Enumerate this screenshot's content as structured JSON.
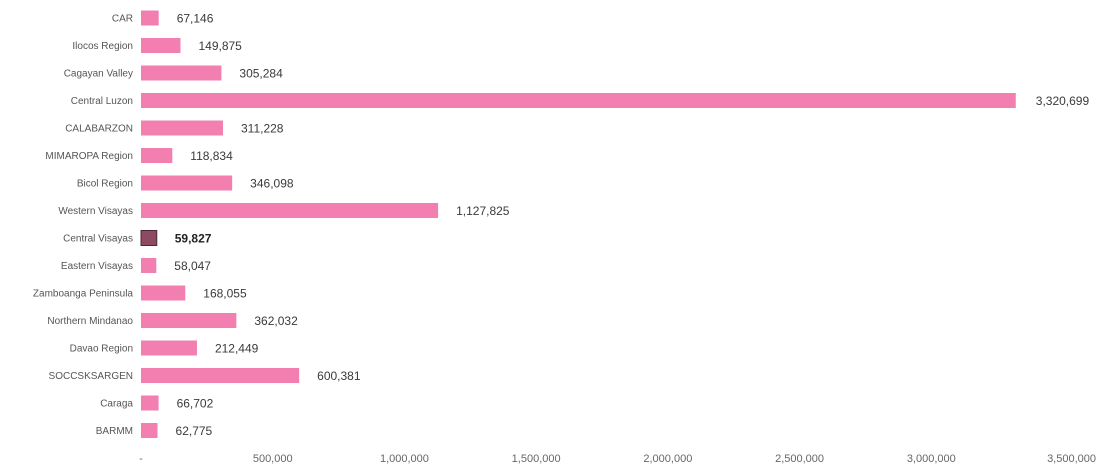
{
  "chart_data": {
    "type": "bar",
    "orientation": "horizontal",
    "categories": [
      "CAR",
      "Ilocos Region",
      "Cagayan Valley",
      "Central Luzon",
      "CALABARZON",
      "MIMAROPA Region",
      "Bicol Region",
      "Western Visayas",
      "Central Visayas",
      "Eastern Visayas",
      "Zamboanga Peninsula",
      "Northern Mindanao",
      "Davao Region",
      "SOCCSKSARGEN",
      "Caraga",
      "BARMM"
    ],
    "values": [
      67146,
      149875,
      305284,
      3320699,
      311228,
      118834,
      346098,
      1127825,
      59827,
      58047,
      168055,
      362032,
      212449,
      600381,
      66702,
      62775
    ],
    "value_labels": [
      "67,146",
      "149,875",
      "305,284",
      "3,320,699",
      "311,228",
      "118,834",
      "346,098",
      "1,127,825",
      "59,827",
      "58,047",
      "168,055",
      "362,032",
      "212,449",
      "600,381",
      "66,702",
      "62,775"
    ],
    "highlighted_category": "Central Visayas",
    "x_ticks": [
      0,
      500000,
      1000000,
      1500000,
      2000000,
      2500000,
      3000000,
      3500000
    ],
    "x_tick_labels": [
      "-",
      "500,000",
      "1,000,000",
      "1,500,000",
      "2,000,000",
      "2,500,000",
      "3,000,000",
      "3,500,000"
    ],
    "xlim": [
      0,
      3500000
    ],
    "grid": false,
    "legend": "none",
    "colors": {
      "bar": "#f27fb0",
      "highlight_bar": "#8c4a63"
    }
  }
}
